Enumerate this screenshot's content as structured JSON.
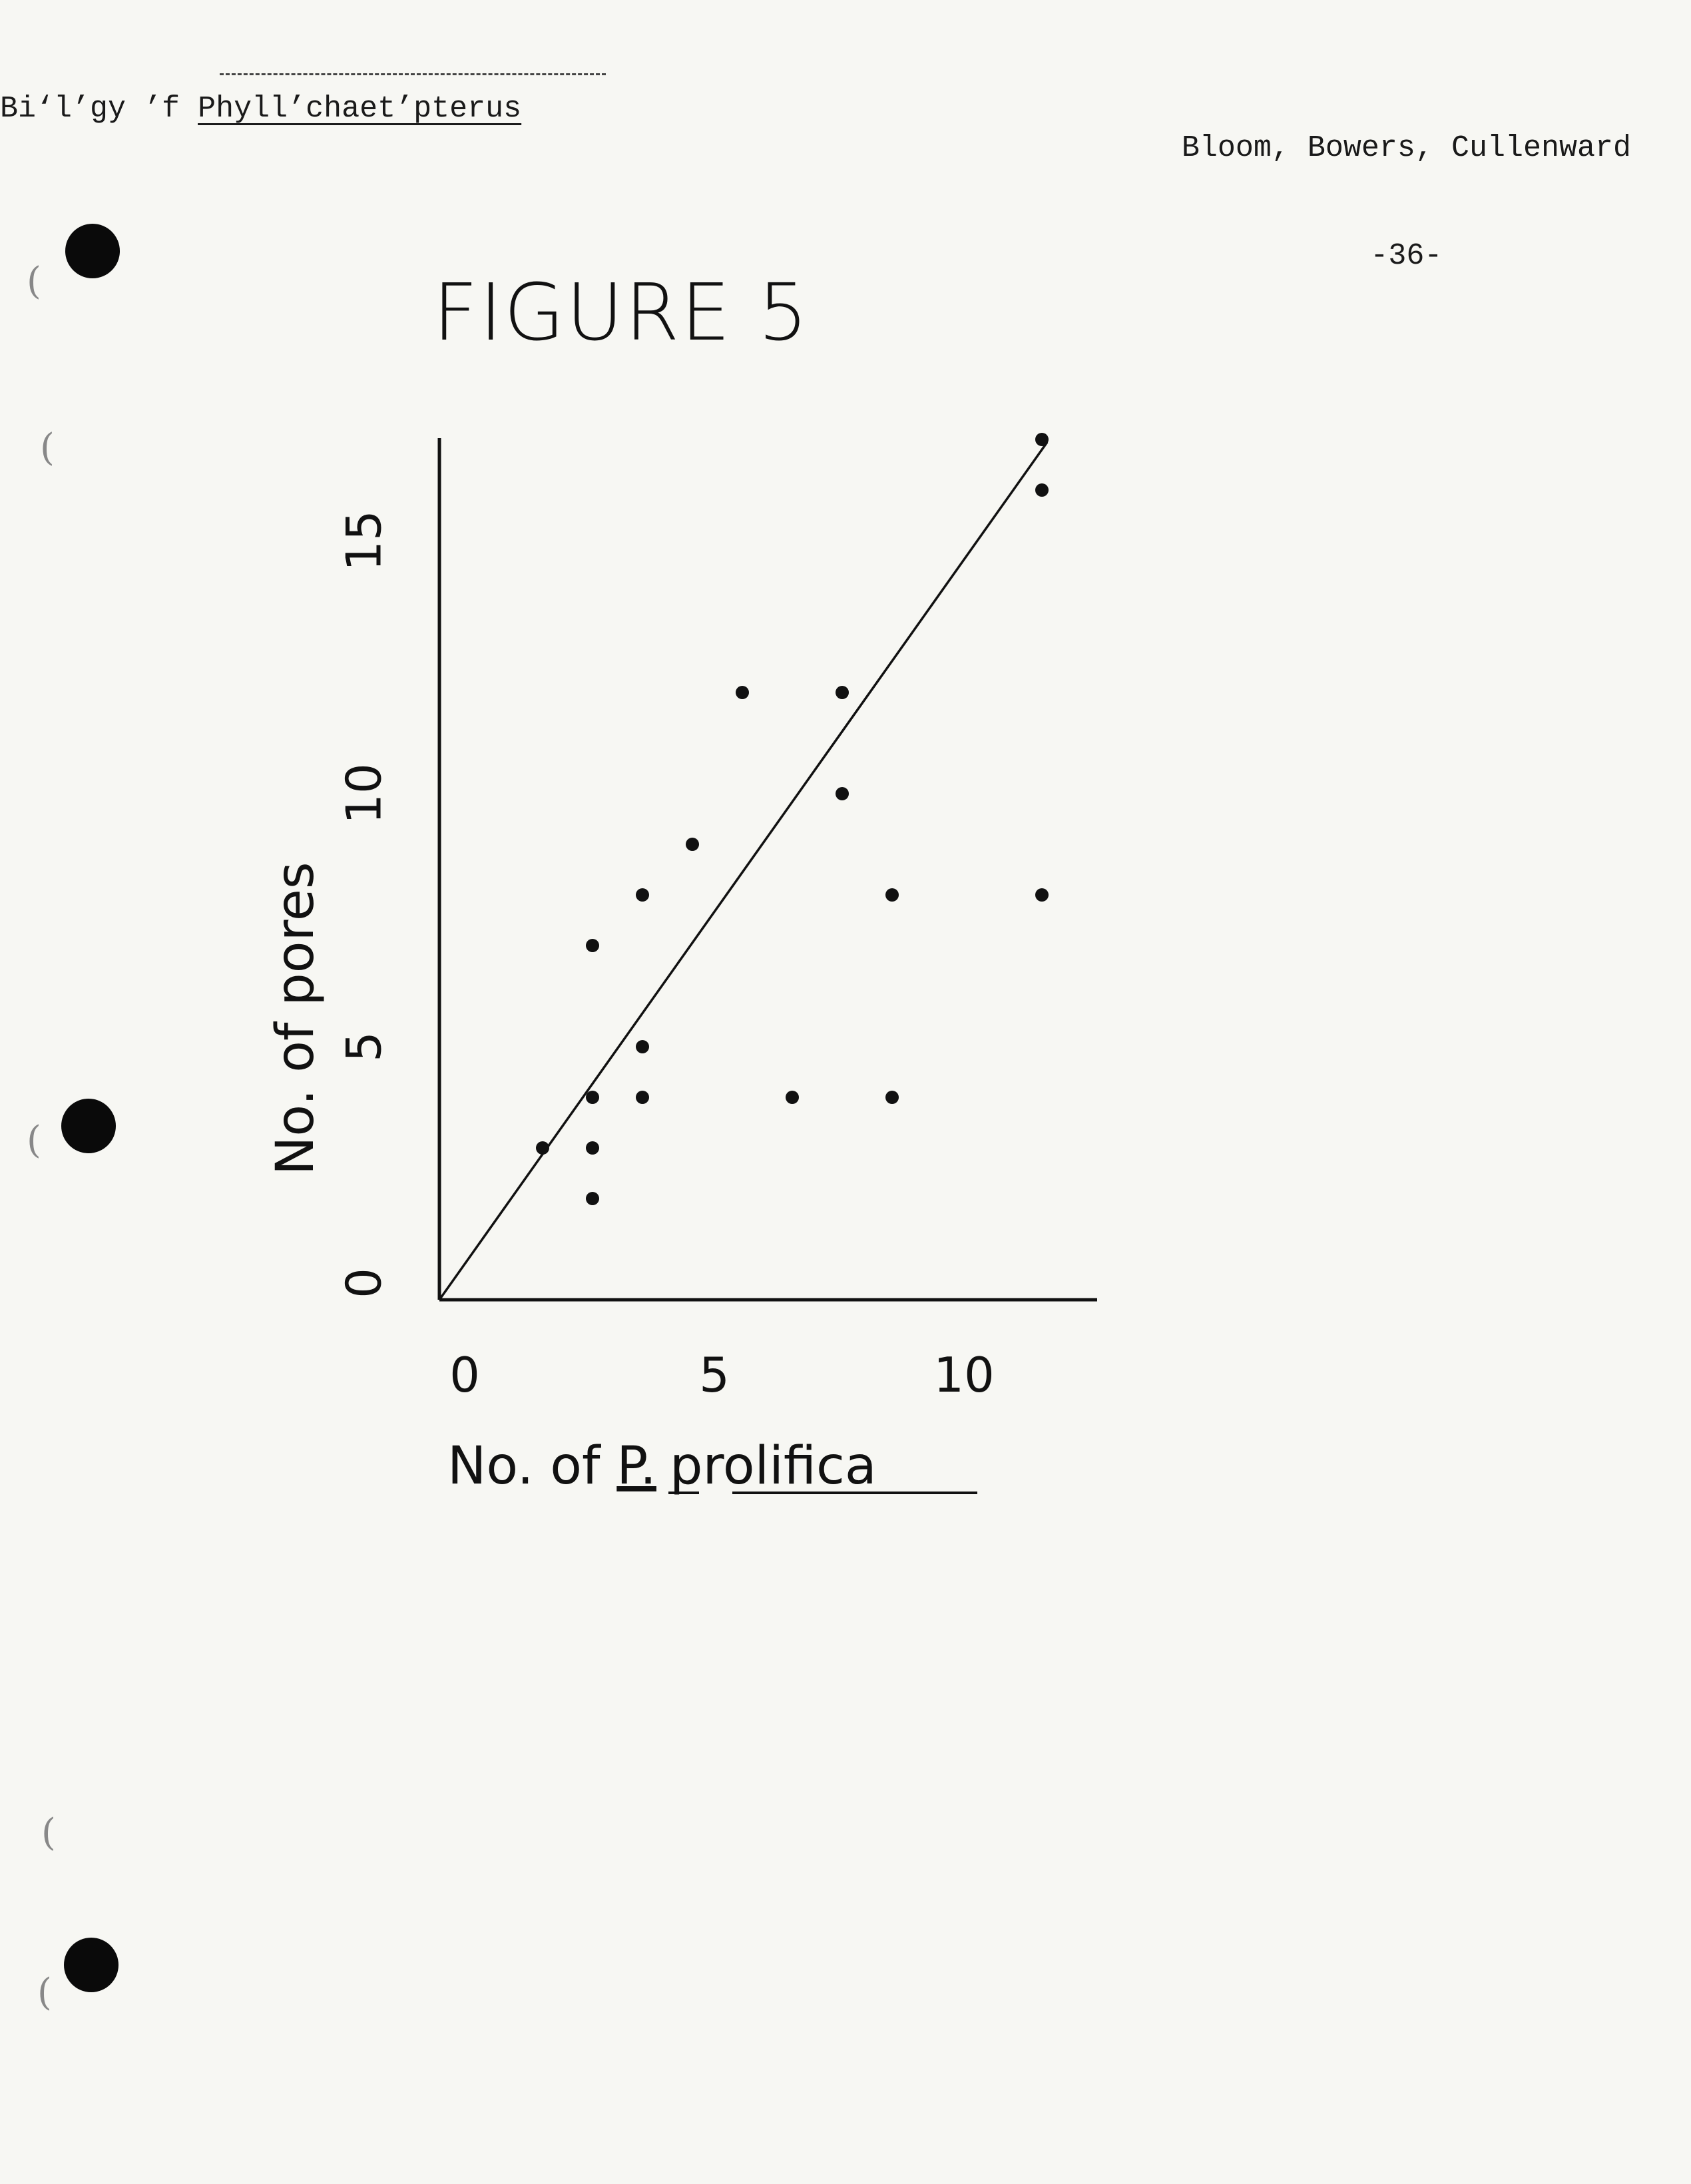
{
  "header": {
    "left_prefix": "Bi‘l’gy ’f ",
    "left_underlined": "Phyll’chaet’pterus",
    "authors": "Bloom, Bowers, Cullenward",
    "page_number": "-36-"
  },
  "figure": {
    "title": "FIGURE 5"
  },
  "chart_data": {
    "type": "scatter",
    "xlabel_prefix": "No. of ",
    "xlabel_genus": "P.",
    "xlabel_species": "prolifica",
    "ylabel": "No. of pores",
    "x_ticks": [
      0,
      5,
      10
    ],
    "y_ticks": [
      0,
      5,
      10,
      15
    ],
    "xlim": [
      0,
      13
    ],
    "ylim": [
      0,
      17
    ],
    "grid": false,
    "legend": "none",
    "points": [
      {
        "x": 2,
        "y": 3
      },
      {
        "x": 3,
        "y": 2
      },
      {
        "x": 3,
        "y": 3
      },
      {
        "x": 3,
        "y": 4
      },
      {
        "x": 3,
        "y": 7
      },
      {
        "x": 4,
        "y": 4
      },
      {
        "x": 4,
        "y": 5
      },
      {
        "x": 4,
        "y": 8
      },
      {
        "x": 5,
        "y": 9
      },
      {
        "x": 6,
        "y": 12
      },
      {
        "x": 7,
        "y": 4
      },
      {
        "x": 8,
        "y": 12
      },
      {
        "x": 8,
        "y": 10
      },
      {
        "x": 9,
        "y": 8
      },
      {
        "x": 9,
        "y": 4
      },
      {
        "x": 12,
        "y": 17
      },
      {
        "x": 12,
        "y": 16
      },
      {
        "x": 12,
        "y": 8
      }
    ],
    "fit_line": {
      "x": [
        0,
        11
      ],
      "y": [
        0,
        17
      ]
    },
    "colors": {
      "ink": "#111111",
      "paper": "#f7f7f3"
    }
  }
}
